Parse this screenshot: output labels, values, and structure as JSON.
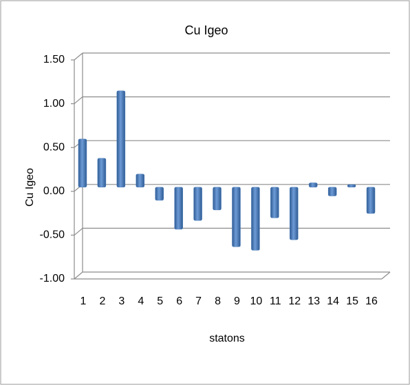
{
  "chart_data": {
    "type": "bar",
    "title": "Cu Igeo",
    "x_label": "statons",
    "y_label": "Cu Igeo",
    "categories": [
      "1",
      "2",
      "3",
      "4",
      "5",
      "6",
      "7",
      "8",
      "9",
      "10",
      "11",
      "12",
      "13",
      "14",
      "15",
      "16"
    ],
    "values": [
      0.55,
      0.33,
      1.1,
      0.15,
      -0.15,
      -0.48,
      -0.38,
      -0.26,
      -0.68,
      -0.72,
      -0.35,
      -0.6,
      0.05,
      -0.1,
      0.03,
      -0.3
    ],
    "color": "#4a7ebb",
    "ylim": [
      -1,
      1.5
    ],
    "yticks": [
      {
        "value": -1,
        "label": "-1.00"
      },
      {
        "value": -0.5,
        "label": "-0.50"
      },
      {
        "value": 0,
        "label": "0.00"
      },
      {
        "value": 0.5,
        "label": "0.50"
      },
      {
        "value": 1,
        "label": "1.00"
      },
      {
        "value": 1.5,
        "label": "1.50"
      }
    ],
    "grid": true
  }
}
